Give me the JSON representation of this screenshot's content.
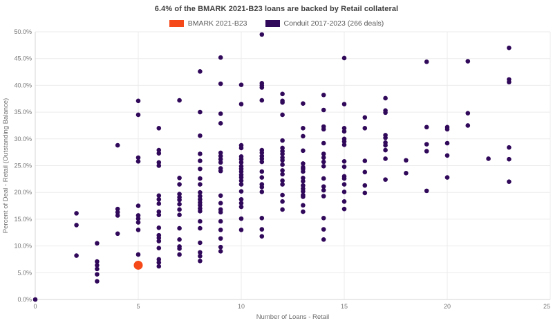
{
  "title": "6.4% of the BMARK 2021-B23 loans are backed by Retail collateral",
  "legend": [
    {
      "label": "BMARK 2021-B23",
      "color": "#F5491A"
    },
    {
      "label": "Conduit 2017-2023 (266 deals)",
      "color": "#31095B"
    }
  ],
  "colors": {
    "grid": "#EBEBEB",
    "axis": "#D6D6D6",
    "tick_text": "#767676",
    "title_text": "#404040"
  },
  "chart_data": {
    "type": "scatter",
    "title": "6.4% of the BMARK 2021-B23 loans are backed by Retail collateral",
    "xlabel": "Number of Loans - Retail",
    "ylabel": "Percent of Deal - Retail (Outstanding Balance)",
    "xlim": [
      0,
      25
    ],
    "ylim": [
      0,
      50
    ],
    "x_ticks": [
      0,
      5,
      10,
      15,
      20,
      25
    ],
    "x_tick_labels": [
      "0",
      "5",
      "10",
      "15",
      "20",
      "25"
    ],
    "y_ticks": [
      0,
      5,
      10,
      15,
      20,
      25,
      30,
      35,
      40,
      45,
      50
    ],
    "y_tick_labels": [
      "0.0%",
      "5.0%",
      "10.0%",
      "15.0%",
      "20.0%",
      "25.0%",
      "30.0%",
      "35.0%",
      "40.0%",
      "45.0%",
      "50.0%"
    ],
    "grid": true,
    "legend_position": "top-center",
    "series": [
      {
        "name": "Conduit 2017-2023 (266 deals)",
        "color": "#31095B",
        "marker_radius": 3.3,
        "points": [
          [
            0,
            0.0
          ],
          [
            2,
            16.1
          ],
          [
            2,
            13.9
          ],
          [
            2,
            8.2
          ],
          [
            3,
            10.5
          ],
          [
            3,
            7.1
          ],
          [
            3,
            6.4
          ],
          [
            3,
            5.7
          ],
          [
            3,
            4.7
          ],
          [
            3,
            3.4
          ],
          [
            4,
            28.8
          ],
          [
            4,
            16.9
          ],
          [
            4,
            16.3
          ],
          [
            4,
            15.7
          ],
          [
            4,
            12.3
          ],
          [
            5,
            37.1
          ],
          [
            5,
            34.5
          ],
          [
            5,
            26.5
          ],
          [
            5,
            25.8
          ],
          [
            5,
            17.5
          ],
          [
            5,
            15.7
          ],
          [
            5,
            15.1
          ],
          [
            5,
            14.4
          ],
          [
            5,
            13.0
          ],
          [
            5,
            8.4
          ],
          [
            6,
            32.0
          ],
          [
            6,
            27.9
          ],
          [
            6,
            27.3
          ],
          [
            6,
            25.6
          ],
          [
            6,
            25.0
          ],
          [
            6,
            19.4
          ],
          [
            6,
            18.7
          ],
          [
            6,
            17.9
          ],
          [
            6,
            16.4
          ],
          [
            6,
            15.8
          ],
          [
            6,
            13.4
          ],
          [
            6,
            12.0
          ],
          [
            6,
            11.5
          ],
          [
            6,
            10.9
          ],
          [
            6,
            9.6
          ],
          [
            6,
            7.5
          ],
          [
            6,
            6.9
          ],
          [
            6,
            6.2
          ],
          [
            7,
            37.2
          ],
          [
            7,
            22.7
          ],
          [
            7,
            21.5
          ],
          [
            7,
            19.7
          ],
          [
            7,
            19.1
          ],
          [
            7,
            18.6
          ],
          [
            7,
            17.8
          ],
          [
            7,
            16.8
          ],
          [
            7,
            15.8
          ],
          [
            7,
            13.3
          ],
          [
            7,
            11.2
          ],
          [
            7,
            9.9
          ],
          [
            7,
            9.5
          ],
          [
            7,
            8.4
          ],
          [
            8,
            42.6
          ],
          [
            8,
            35.0
          ],
          [
            8,
            30.6
          ],
          [
            8,
            27.2
          ],
          [
            8,
            25.9
          ],
          [
            8,
            24.4
          ],
          [
            8,
            22.6
          ],
          [
            8,
            21.5
          ],
          [
            8,
            20.0
          ],
          [
            8,
            19.3
          ],
          [
            8,
            18.7
          ],
          [
            8,
            18.1
          ],
          [
            8,
            17.6
          ],
          [
            8,
            17.0
          ],
          [
            8,
            16.5
          ],
          [
            8,
            14.6
          ],
          [
            8,
            13.3
          ],
          [
            8,
            10.6
          ],
          [
            8,
            8.8
          ],
          [
            8,
            8.1
          ],
          [
            8,
            7.2
          ],
          [
            9,
            45.2
          ],
          [
            9,
            40.3
          ],
          [
            9,
            34.7
          ],
          [
            9,
            32.9
          ],
          [
            9,
            27.4
          ],
          [
            9,
            26.8
          ],
          [
            9,
            26.2
          ],
          [
            9,
            25.6
          ],
          [
            9,
            24.5
          ],
          [
            9,
            24.0
          ],
          [
            9,
            19.4
          ],
          [
            9,
            18.0
          ],
          [
            9,
            16.8
          ],
          [
            9,
            16.3
          ],
          [
            9,
            14.6
          ],
          [
            9,
            13.0
          ],
          [
            9,
            11.4
          ],
          [
            9,
            9.8
          ],
          [
            9,
            9.0
          ],
          [
            10,
            40.1
          ],
          [
            10,
            36.5
          ],
          [
            10,
            28.8
          ],
          [
            10,
            28.3
          ],
          [
            10,
            26.7
          ],
          [
            10,
            26.2
          ],
          [
            10,
            25.6
          ],
          [
            10,
            24.9
          ],
          [
            10,
            24.4
          ],
          [
            10,
            23.9
          ],
          [
            10,
            23.3
          ],
          [
            10,
            22.8
          ],
          [
            10,
            22.2
          ],
          [
            10,
            21.5
          ],
          [
            10,
            20.2
          ],
          [
            10,
            18.7
          ],
          [
            10,
            18.0
          ],
          [
            10,
            17.3
          ],
          [
            10,
            15.1
          ],
          [
            10,
            13.0
          ],
          [
            11,
            49.5
          ],
          [
            11,
            40.4
          ],
          [
            11,
            40.0
          ],
          [
            11,
            39.6
          ],
          [
            11,
            37.2
          ],
          [
            11,
            27.9
          ],
          [
            11,
            27.4
          ],
          [
            11,
            26.8
          ],
          [
            11,
            26.3
          ],
          [
            11,
            25.7
          ],
          [
            11,
            23.9
          ],
          [
            11,
            22.8
          ],
          [
            11,
            21.5
          ],
          [
            11,
            21.0
          ],
          [
            11,
            20.1
          ],
          [
            11,
            15.2
          ],
          [
            11,
            13.1
          ],
          [
            11,
            11.8
          ],
          [
            12,
            38.4
          ],
          [
            12,
            37.1
          ],
          [
            12,
            36.8
          ],
          [
            12,
            34.5
          ],
          [
            12,
            29.7
          ],
          [
            12,
            28.3
          ],
          [
            12,
            27.7
          ],
          [
            12,
            27.2
          ],
          [
            12,
            26.5
          ],
          [
            12,
            26.0
          ],
          [
            12,
            25.2
          ],
          [
            12,
            24.1
          ],
          [
            12,
            23.4
          ],
          [
            12,
            22.2
          ],
          [
            12,
            21.5
          ],
          [
            12,
            19.5
          ],
          [
            12,
            18.3
          ],
          [
            12,
            16.8
          ],
          [
            13,
            36.6
          ],
          [
            13,
            32.0
          ],
          [
            13,
            30.5
          ],
          [
            13,
            27.8
          ],
          [
            13,
            25.4
          ],
          [
            13,
            24.7
          ],
          [
            13,
            24.4
          ],
          [
            13,
            23.9
          ],
          [
            13,
            22.7
          ],
          [
            13,
            22.1
          ],
          [
            13,
            21.3
          ],
          [
            13,
            20.7
          ],
          [
            13,
            20.2
          ],
          [
            13,
            19.5
          ],
          [
            13,
            19.2
          ],
          [
            13,
            17.6
          ],
          [
            13,
            16.4
          ],
          [
            14,
            38.2
          ],
          [
            14,
            35.4
          ],
          [
            14,
            32.3
          ],
          [
            14,
            31.8
          ],
          [
            14,
            29.2
          ],
          [
            14,
            27.2
          ],
          [
            14,
            26.5
          ],
          [
            14,
            25.7
          ],
          [
            14,
            24.9
          ],
          [
            14,
            22.6
          ],
          [
            14,
            21.1
          ],
          [
            14,
            20.4
          ],
          [
            14,
            19.3
          ],
          [
            14,
            15.2
          ],
          [
            14,
            13.1
          ],
          [
            14,
            11.2
          ],
          [
            15,
            45.1
          ],
          [
            15,
            36.5
          ],
          [
            15,
            32.0
          ],
          [
            15,
            31.4
          ],
          [
            15,
            30.0
          ],
          [
            15,
            29.5
          ],
          [
            15,
            28.9
          ],
          [
            15,
            25.8
          ],
          [
            15,
            24.8
          ],
          [
            15,
            23.0
          ],
          [
            15,
            22.6
          ],
          [
            15,
            21.5
          ],
          [
            15,
            20.1
          ],
          [
            15,
            18.3
          ],
          [
            15,
            16.9
          ],
          [
            16,
            34.0
          ],
          [
            16,
            32.0
          ],
          [
            16,
            25.9
          ],
          [
            16,
            23.8
          ],
          [
            16,
            21.3
          ],
          [
            16,
            19.9
          ],
          [
            17,
            37.6
          ],
          [
            17,
            35.3
          ],
          [
            17,
            34.9
          ],
          [
            17,
            30.7
          ],
          [
            17,
            30.2
          ],
          [
            17,
            29.3
          ],
          [
            17,
            28.8
          ],
          [
            17,
            27.9
          ],
          [
            17,
            26.3
          ],
          [
            17,
            22.4
          ],
          [
            18,
            26.0
          ],
          [
            18,
            23.6
          ],
          [
            19,
            44.4
          ],
          [
            19,
            32.2
          ],
          [
            19,
            29.0
          ],
          [
            19,
            27.7
          ],
          [
            19,
            20.3
          ],
          [
            20,
            32.2
          ],
          [
            20,
            31.8
          ],
          [
            20,
            29.2
          ],
          [
            20,
            26.9
          ],
          [
            20,
            22.8
          ],
          [
            21,
            44.5
          ],
          [
            21,
            34.8
          ],
          [
            21,
            32.5
          ],
          [
            22,
            26.3
          ],
          [
            23,
            47.0
          ],
          [
            23,
            41.1
          ],
          [
            23,
            40.6
          ],
          [
            23,
            28.4
          ],
          [
            23,
            26.2
          ],
          [
            23,
            22.0
          ]
        ]
      },
      {
        "name": "BMARK 2021-B23",
        "color": "#F5491A",
        "marker_radius": 6.5,
        "points": [
          [
            5,
            6.4
          ]
        ]
      }
    ]
  }
}
